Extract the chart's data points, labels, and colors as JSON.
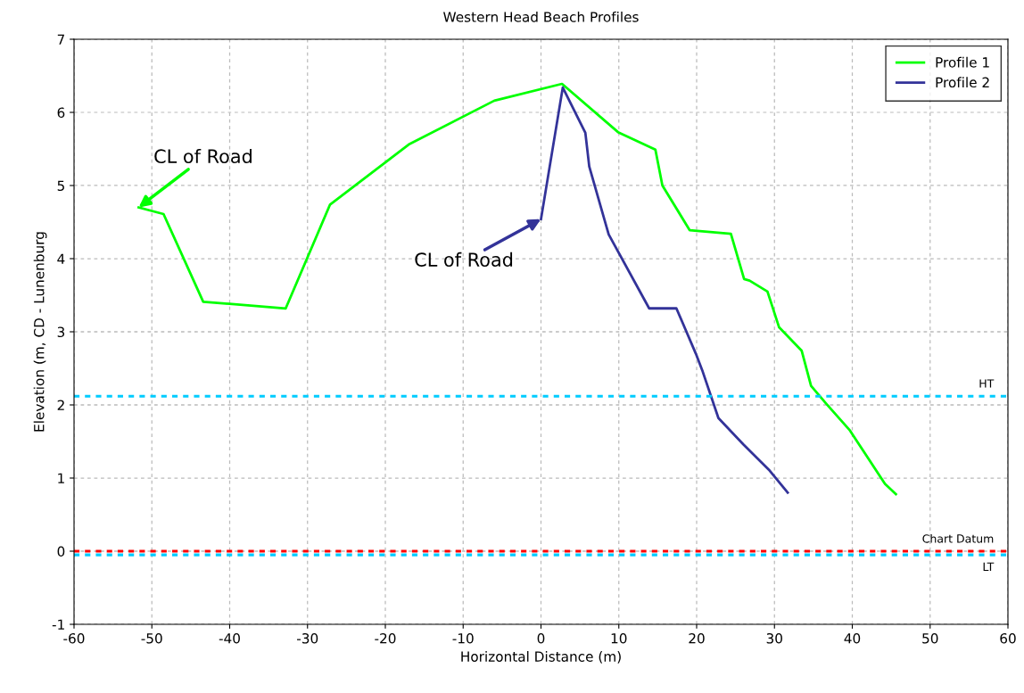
{
  "chart_data": {
    "type": "line",
    "title": "Western Head Beach Profiles",
    "xlabel": "Horizontal Distance (m)",
    "ylabel": "Elevation (m, CD - Lunenburg",
    "xlim": [
      -60,
      60
    ],
    "xticks": [
      -60,
      -50,
      -40,
      -30,
      -20,
      -10,
      0,
      10,
      20,
      30,
      40,
      50,
      60
    ],
    "ylim": [
      -1,
      7
    ],
    "yticks": [
      -1,
      0,
      1,
      2,
      3,
      4,
      5,
      6,
      7
    ],
    "grid": true,
    "legend": "top right",
    "marker": "none",
    "line_style": "solid",
    "series": [
      {
        "name": "Profile 1",
        "color": "#00ff00",
        "x": [
          -51.7,
          -48.5,
          -43.4,
          -32.8,
          -27.1,
          -17.0,
          -6.0,
          2.7,
          9.9,
          14.7,
          15.6,
          19.1,
          24.4,
          26.1,
          26.8,
          29.1,
          30.6,
          33.5,
          34.7,
          36.7,
          39.7,
          44.2,
          45.6
        ],
        "values": [
          4.7,
          4.61,
          3.41,
          3.32,
          4.74,
          5.56,
          6.16,
          6.39,
          5.73,
          5.49,
          5.0,
          4.39,
          4.34,
          3.72,
          3.7,
          3.55,
          3.06,
          2.74,
          2.26,
          2.01,
          1.65,
          0.92,
          0.78
        ]
      },
      {
        "name": "Profile 2",
        "color": "#333399",
        "x": [
          0.0,
          2.8,
          5.7,
          6.2,
          8.7,
          13.9,
          17.4,
          19.9,
          20.7,
          22.8,
          26.0,
          29.4,
          31.7
        ],
        "values": [
          4.54,
          6.34,
          5.72,
          5.26,
          4.33,
          3.32,
          3.32,
          2.7,
          2.48,
          1.82,
          1.46,
          1.1,
          0.8
        ]
      }
    ],
    "ref_lines": [
      {
        "axis": "y",
        "value": 2.12,
        "label": "HT",
        "color": "#00ccff",
        "line_style": "dotted"
      },
      {
        "axis": "y",
        "value": 0.0,
        "label": "Chart Datum",
        "color": "#ff0000",
        "line_style": "dotted"
      },
      {
        "axis": "y",
        "value": -0.05,
        "label": "LT",
        "color": "#00ccff",
        "line_style": "dotted"
      }
    ],
    "annotations": [
      {
        "text": "CL of Road",
        "x": -51.7,
        "y": 4.7
      },
      {
        "text": "CL of Road",
        "x": 0.0,
        "y": 4.54
      }
    ]
  }
}
